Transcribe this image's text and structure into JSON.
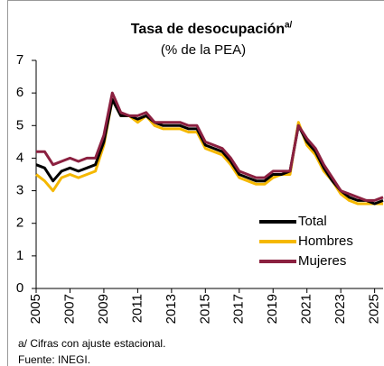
{
  "chart_data": {
    "type": "line",
    "title": "Tasa de desocupación",
    "title_note": "a/",
    "subtitle": "(% de la PEA)",
    "footnotes": [
      "a/ Cifras con ajuste estacional.",
      "Fuente: INEGI."
    ],
    "x": [
      2005,
      2005.5,
      2006,
      2006.5,
      2007,
      2007.5,
      2008,
      2008.5,
      2009,
      2009.5,
      2010,
      2010.5,
      2011,
      2011.5,
      2012,
      2012.5,
      2013,
      2013.5,
      2014,
      2014.5,
      2015,
      2015.5,
      2016,
      2016.5,
      2017,
      2017.5,
      2018,
      2018.5,
      2019,
      2019.5,
      2020,
      2020.5,
      2021,
      2021.5,
      2022,
      2022.5,
      2023,
      2023.5,
      2024,
      2024.5,
      2025,
      2025.5
    ],
    "series": [
      {
        "name": "Hombres",
        "color": "#f5b800",
        "values": [
          3.5,
          3.3,
          3.0,
          3.4,
          3.5,
          3.4,
          3.5,
          3.6,
          4.4,
          5.8,
          5.3,
          5.3,
          5.1,
          5.3,
          5.0,
          4.9,
          4.9,
          4.9,
          4.8,
          4.8,
          4.3,
          4.2,
          4.1,
          3.8,
          3.4,
          3.3,
          3.2,
          3.2,
          3.4,
          3.5,
          3.5,
          5.1,
          4.4,
          4.1,
          3.6,
          3.3,
          2.9,
          2.7,
          2.6,
          2.6,
          2.6,
          2.6
        ]
      },
      {
        "name": "Total",
        "color": "#000000",
        "values": [
          3.8,
          3.7,
          3.3,
          3.6,
          3.7,
          3.6,
          3.7,
          3.8,
          4.5,
          5.8,
          5.3,
          5.3,
          5.2,
          5.3,
          5.1,
          5.0,
          5.0,
          5.0,
          4.9,
          4.9,
          4.4,
          4.3,
          4.2,
          3.9,
          3.5,
          3.4,
          3.3,
          3.3,
          3.5,
          3.5,
          3.6,
          5.0,
          4.5,
          4.2,
          3.7,
          3.3,
          3.0,
          2.8,
          2.7,
          2.7,
          2.6,
          2.7
        ]
      },
      {
        "name": "Mujeres",
        "color": "#8b2040",
        "values": [
          4.2,
          4.2,
          3.8,
          3.9,
          4.0,
          3.9,
          4.0,
          4.0,
          4.7,
          6.0,
          5.4,
          5.3,
          5.3,
          5.4,
          5.1,
          5.1,
          5.1,
          5.1,
          5.0,
          5.0,
          4.5,
          4.4,
          4.3,
          4.0,
          3.6,
          3.5,
          3.4,
          3.4,
          3.6,
          3.6,
          3.6,
          5.0,
          4.6,
          4.3,
          3.8,
          3.4,
          3.0,
          2.9,
          2.8,
          2.7,
          2.7,
          2.8
        ]
      }
    ],
    "legend_order": [
      "Total",
      "Hombres",
      "Mujeres"
    ],
    "xlim": [
      2005,
      2025.5
    ],
    "xticks": [
      2005,
      2007,
      2009,
      2011,
      2013,
      2015,
      2017,
      2019,
      2021,
      2023,
      2025
    ],
    "ylim": [
      0,
      7
    ],
    "yticks": [
      0,
      1,
      2,
      3,
      4,
      5,
      6,
      7
    ],
    "grid": false
  }
}
